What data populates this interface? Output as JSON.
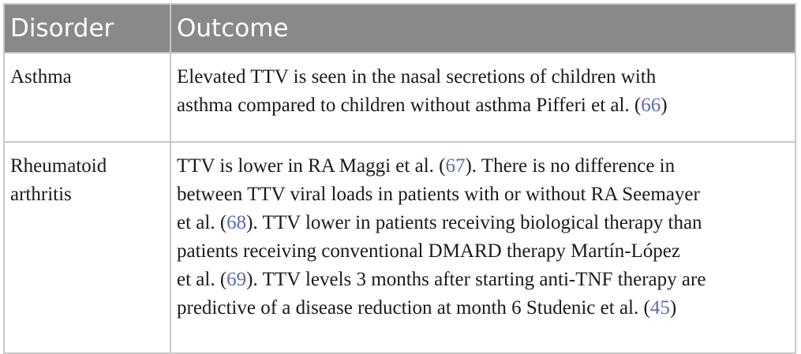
{
  "table": {
    "headers": [
      "Disorder",
      "Outcome"
    ],
    "rows": [
      {
        "disorder_lines": [
          "Asthma"
        ],
        "outcome_lines": [
          [
            {
              "t": "Elevated TTV is seen in the nasal secretions of children with"
            }
          ],
          [
            {
              "t": "asthma compared to children without asthma Pifferi et al. ("
            },
            {
              "t": "66",
              "ref": true
            },
            {
              "t": ")"
            }
          ]
        ]
      },
      {
        "disorder_lines": [
          "Rheumatoid",
          "arthritis"
        ],
        "outcome_lines": [
          [
            {
              "t": "TTV is lower in RA Maggi et al. ("
            },
            {
              "t": "67",
              "ref": true
            },
            {
              "t": "). There is no difference in"
            }
          ],
          [
            {
              "t": "between TTV viral loads in patients with or without RA Seemayer"
            }
          ],
          [
            {
              "t": "et al. ("
            },
            {
              "t": "68",
              "ref": true
            },
            {
              "t": "). TTV lower in patients receiving biological therapy than"
            }
          ],
          [
            {
              "t": "patients receiving conventional DMARD therapy Martín-López"
            }
          ],
          [
            {
              "t": "et al. ("
            },
            {
              "t": "69",
              "ref": true
            },
            {
              "t": "). TTV levels 3 months after starting anti-TNF therapy are"
            }
          ],
          [
            {
              "t": "predictive of a disease reduction at month 6 Studenic et al. ("
            },
            {
              "t": "45",
              "ref": true
            },
            {
              "t": ")"
            }
          ]
        ]
      }
    ]
  }
}
